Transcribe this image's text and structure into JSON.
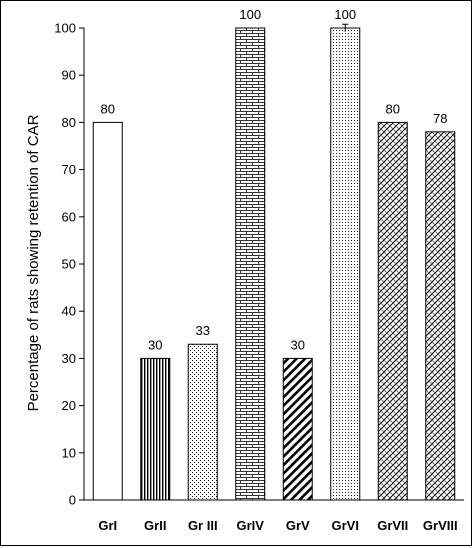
{
  "chart_data": {
    "type": "bar",
    "categories": [
      "GrI",
      "GrII",
      "Gr III",
      "GrIV",
      "GrV",
      "GrVI",
      "GrVII",
      "GrVIII"
    ],
    "values": [
      80,
      30,
      33,
      100,
      30,
      100,
      80,
      78
    ],
    "data_labels": [
      "80",
      "30",
      "33",
      "100",
      "30",
      "100",
      "80",
      "78"
    ],
    "patterns": [
      "none",
      "vertical-lines",
      "dots",
      "brick",
      "diagonal-lines",
      "fine-dots",
      "crosshatch",
      "crosshatch"
    ],
    "error_bars": [
      null,
      null,
      null,
      null,
      null,
      0.8,
      null,
      null
    ],
    "ylabel": "Percentage of rats showing retention of CAR",
    "xlabel": "",
    "ylim": [
      0,
      100
    ],
    "yticks": [
      0,
      10,
      20,
      30,
      40,
      50,
      60,
      70,
      80,
      90,
      100
    ],
    "grid": false,
    "colors": {
      "bar_fill": "#ffffff",
      "bar_stroke": "#000000",
      "pattern": "#000000"
    }
  }
}
